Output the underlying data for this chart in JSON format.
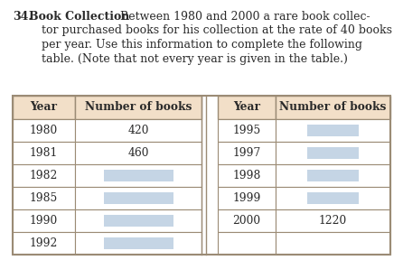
{
  "title_number": "34.",
  "title_bold": "Book Collection",
  "title_line1": "Between 1980 and 2000 a rare book collec-",
  "title_line2": "tor purchased books for his collection at the rate of 40 books",
  "title_line3": "per year. Use this information to complete the following",
  "title_line4": "table. (Note that not every year is given in the table.)",
  "header_bg": "#f2dfc8",
  "blank_cell_color": "#c5d5e5",
  "table_border_color": "#9B8B75",
  "text_color": "#2a2a2a",
  "left_years": [
    "1980",
    "1981",
    "1982",
    "1985",
    "1990",
    "1992"
  ],
  "left_values": [
    "420",
    "460",
    "",
    "",
    "",
    ""
  ],
  "right_years": [
    "1995",
    "1997",
    "1998",
    "1999",
    "2000",
    ""
  ],
  "right_values": [
    "",
    "",
    "",
    "",
    "1220",
    ""
  ],
  "col_header": [
    "Year",
    "Number of books",
    "Year",
    "Number of books"
  ],
  "font_size_body": 9.0,
  "font_size_table": 8.8,
  "background_color": "#ffffff"
}
